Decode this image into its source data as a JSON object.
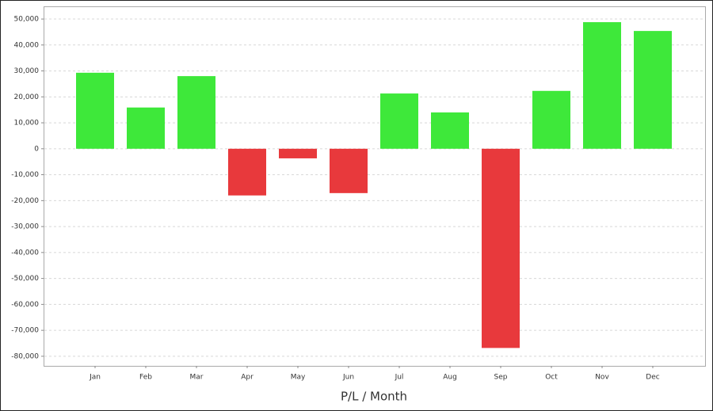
{
  "chart_data": {
    "type": "bar",
    "title": "P/L / Month",
    "categories": [
      "Jan",
      "Feb",
      "Mar",
      "Apr",
      "May",
      "Jun",
      "Jul",
      "Aug",
      "Sep",
      "Oct",
      "Nov",
      "Dec"
    ],
    "values": [
      29300,
      15900,
      28000,
      -18000,
      -3700,
      -17100,
      21300,
      14000,
      -76800,
      22300,
      48800,
      45400
    ],
    "positive_color": "#3ee83a",
    "negative_color": "#e8393c",
    "ylim": [
      -83700,
      54900
    ],
    "yticks": [
      {
        "value": 50000,
        "label": "50,000"
      },
      {
        "value": 40000,
        "label": "40,000"
      },
      {
        "value": 30000,
        "label": "30,000"
      },
      {
        "value": 20000,
        "label": "20,000"
      },
      {
        "value": 10000,
        "label": "10,000"
      },
      0,
      {
        "value": -10000,
        "label": "-10,000"
      },
      {
        "value": -20000,
        "label": "-20,000"
      },
      {
        "value": -30000,
        "label": "-30,000"
      },
      {
        "value": -40000,
        "label": "-40,000"
      },
      {
        "value": -50000,
        "label": "-50,000"
      },
      {
        "value": -60000,
        "label": "-60,000"
      },
      {
        "value": -70000,
        "label": "-70,000"
      },
      {
        "value": -80000,
        "label": "-80,000"
      }
    ],
    "grid": true
  }
}
